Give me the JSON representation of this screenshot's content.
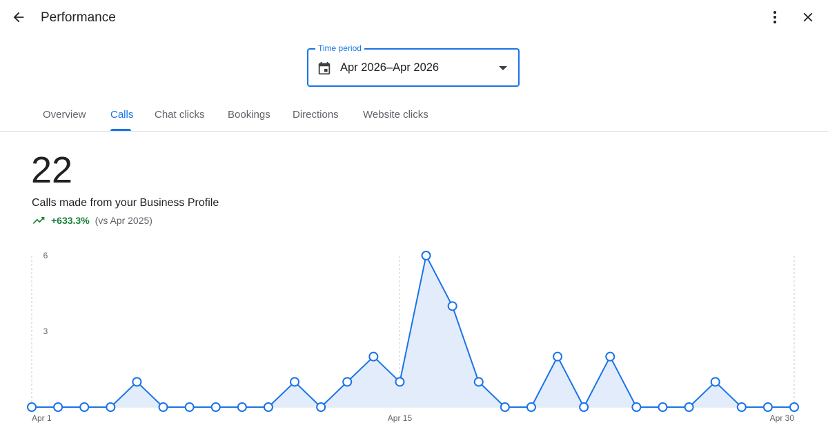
{
  "header": {
    "title": "Performance",
    "back_icon": "arrow-back-icon",
    "more_icon": "more-vert-icon",
    "close_icon": "close-icon"
  },
  "time_period": {
    "label": "Time period",
    "value": "Apr 2026–Apr 2026",
    "icon": "calendar-icon",
    "accent_color": "#1a73e8"
  },
  "tabs": [
    {
      "label": "Overview",
      "active": false
    },
    {
      "label": "Calls",
      "active": true
    },
    {
      "label": "Chat clicks",
      "active": false
    },
    {
      "label": "Bookings",
      "active": false
    },
    {
      "label": "Directions",
      "active": false
    },
    {
      "label": "Website clicks",
      "active": false
    }
  ],
  "metric": {
    "value": "22",
    "label": "Calls made from your Business Profile",
    "change": "+633.3%",
    "comparison": "(vs Apr 2025)",
    "trend_icon": "trending-up-icon",
    "change_color": "#188038"
  },
  "chart_data": {
    "type": "area",
    "x": [
      1,
      2,
      3,
      4,
      5,
      6,
      7,
      8,
      9,
      10,
      11,
      12,
      13,
      14,
      15,
      16,
      17,
      18,
      19,
      20,
      21,
      22,
      23,
      24,
      25,
      26,
      27,
      28,
      29,
      30
    ],
    "values": [
      0,
      0,
      0,
      0,
      1,
      0,
      0,
      0,
      0,
      0,
      1,
      0,
      1,
      2,
      1,
      6,
      4,
      1,
      0,
      0,
      2,
      0,
      2,
      0,
      0,
      0,
      1,
      0,
      0,
      0
    ],
    "x_tick_labels": [
      {
        "x": 1,
        "label": "Apr 1"
      },
      {
        "x": 15,
        "label": "Apr 15"
      },
      {
        "x": 30,
        "label": "Apr 30"
      }
    ],
    "y_ticks": [
      3,
      6
    ],
    "ylim": [
      0,
      6
    ],
    "grid": "vertical dashed at Apr 1, Apr 15, Apr 30",
    "line_color": "#1a73e8",
    "fill_color": "#e3ecfa",
    "title": "",
    "xlabel": "",
    "ylabel": ""
  }
}
